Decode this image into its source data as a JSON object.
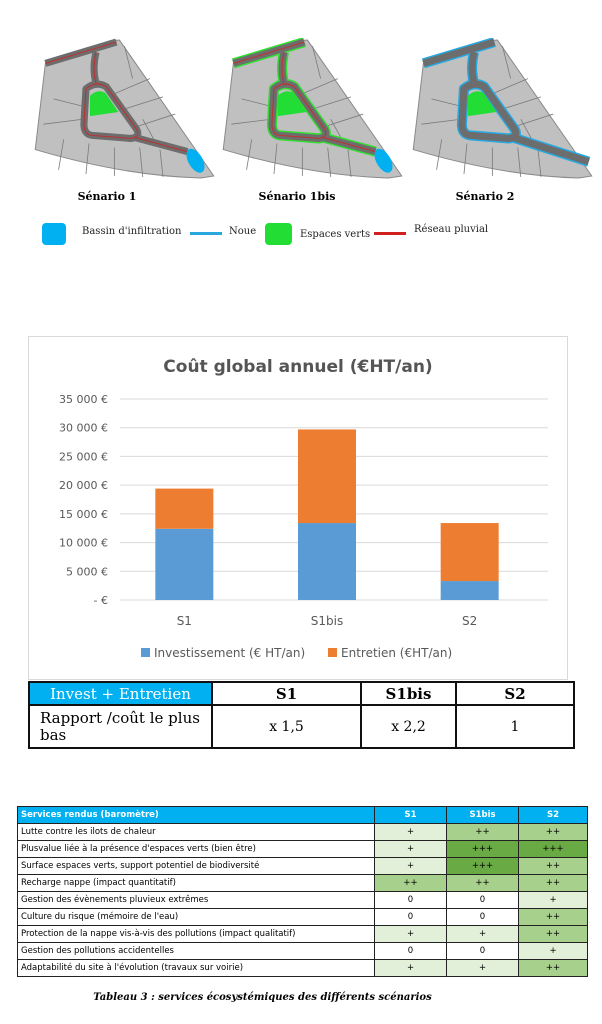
{
  "scenarios_figure": {
    "maps": [
      {
        "label": "Sénario 1",
        "features": [
          "reseau_pluvial",
          "bassin"
        ]
      },
      {
        "label": "Sénario 1bis",
        "features": [
          "reseau_pluvial",
          "espaces_verts_bordure",
          "bassin"
        ]
      },
      {
        "label": "Sénario 2",
        "features": [
          "noue"
        ]
      }
    ],
    "legend": [
      {
        "label": "Bassin d'infiltration",
        "color": "#00b0f0",
        "shape": "square"
      },
      {
        "label": "Noue",
        "color": "#29a8e0",
        "shape": "line"
      },
      {
        "label": "Espaces verts",
        "color": "#22dd33",
        "shape": "square"
      },
      {
        "label": "Réseau pluvial",
        "color": "#d02020",
        "shape": "line"
      }
    ]
  },
  "chart_data": {
    "type": "bar",
    "stacked": true,
    "title": "Coût global annuel (€HT/an)",
    "categories": [
      "S1",
      "S1bis",
      "S2"
    ],
    "series": [
      {
        "name": "Investissement (€ HT/an)",
        "color": "#5b9bd5",
        "values": [
          12400,
          13400,
          3300
        ]
      },
      {
        "name": "Entretien (€HT/an)",
        "color": "#ed7d31",
        "values": [
          7000,
          16300,
          10100
        ]
      }
    ],
    "ylim": [
      0,
      35000
    ],
    "yticks": [
      0,
      5000,
      10000,
      15000,
      20000,
      25000,
      30000,
      35000
    ],
    "ytick_labels": [
      "-   €",
      "5 000 €",
      "10 000 €",
      "15 000 €",
      "20 000 €",
      "25 000 €",
      "30 000 €",
      "35 000 €"
    ],
    "grid": true,
    "legend_position": "bottom"
  },
  "cost_table": {
    "header": [
      "Invest + Entretien",
      "S1",
      "S1bis",
      "S2"
    ],
    "row": [
      "Rapport /coût le plus bas",
      "x 1,5",
      "x 2,2",
      "1"
    ],
    "header_color": "#00b0f0"
  },
  "services_table": {
    "header": [
      "Services rendus (baromètre)",
      "S1",
      "S1bis",
      "S2"
    ],
    "rows": [
      [
        "Lutte contre les ilots de chaleur",
        "+",
        "++",
        "++"
      ],
      [
        "Plusvalue liée à la présence d'espaces verts (bien être)",
        "+",
        "+++",
        "+++"
      ],
      [
        "Surface espaces verts, support potentiel de biodiversité",
        "+",
        "+++",
        "++"
      ],
      [
        "Recharge nappe (impact quantitatif)",
        "++",
        "++",
        "++"
      ],
      [
        "Gestion des évènements pluvieux extrêmes",
        "0",
        "0",
        "+"
      ],
      [
        "Culture du risque (mémoire de l'eau)",
        "0",
        "0",
        "++"
      ],
      [
        "Protection de la nappe vis-à-vis des pollutions (impact qualitatif)",
        "+",
        "+",
        "++"
      ],
      [
        "Gestion des pollutions accidentelles",
        "0",
        "0",
        "+"
      ],
      [
        "Adaptabilité du site à l'évolution (travaux sur voirie)",
        "+",
        "+",
        "++"
      ]
    ],
    "scale_colors": {
      "0": "#ffffff",
      "+": "#e3f0d9",
      "++": "#a8d08d",
      "+++": "#6aaa45"
    },
    "caption": "Tableau 3 : services écosystémiques des différents scénarios"
  }
}
